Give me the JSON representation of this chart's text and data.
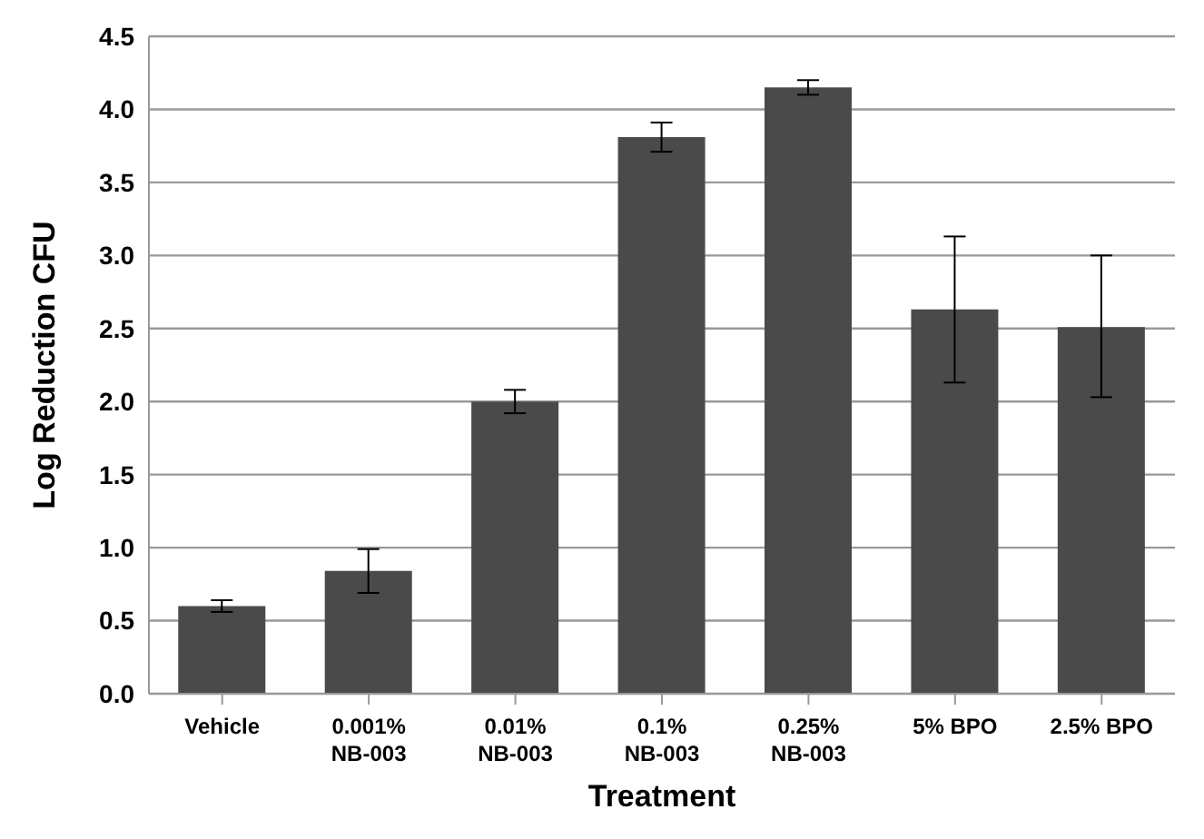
{
  "chart_data": {
    "type": "bar",
    "xlabel": "Treatment",
    "ylabel": "Log  Reduction  CFU",
    "categories": [
      "Vehicle",
      "0.001%\nNB-003",
      "0.01%\nNB-003",
      "0.1%\nNB-003",
      "0.25%\nNB-003",
      "5% BPO",
      "2.5% BPO"
    ],
    "values": [
      0.6,
      0.84,
      2.0,
      3.81,
      4.15,
      2.63,
      2.51
    ],
    "errors": [
      0.04,
      [
        0.69,
        0.99
      ],
      0.08,
      0.1,
      0.05,
      0.5,
      [
        2.03,
        3.0
      ]
    ],
    "color": "#4a4a4a",
    "ylim": [
      0,
      4.5
    ],
    "yticks": [
      {
        "value": 0,
        "label": "0.0"
      },
      {
        "value": 0.5,
        "label": "0.5"
      },
      {
        "value": 1,
        "label": "1.0"
      },
      {
        "value": 1.5,
        "label": "1.5"
      },
      {
        "value": 2,
        "label": "2.0"
      },
      {
        "value": 2.5,
        "label": "2.5"
      },
      {
        "value": 3,
        "label": "3.0"
      },
      {
        "value": 3.5,
        "label": "3.5"
      },
      {
        "value": 4,
        "label": "4.0"
      },
      {
        "value": 4.5,
        "label": "4.5"
      }
    ],
    "grid": "y",
    "legend": false
  }
}
